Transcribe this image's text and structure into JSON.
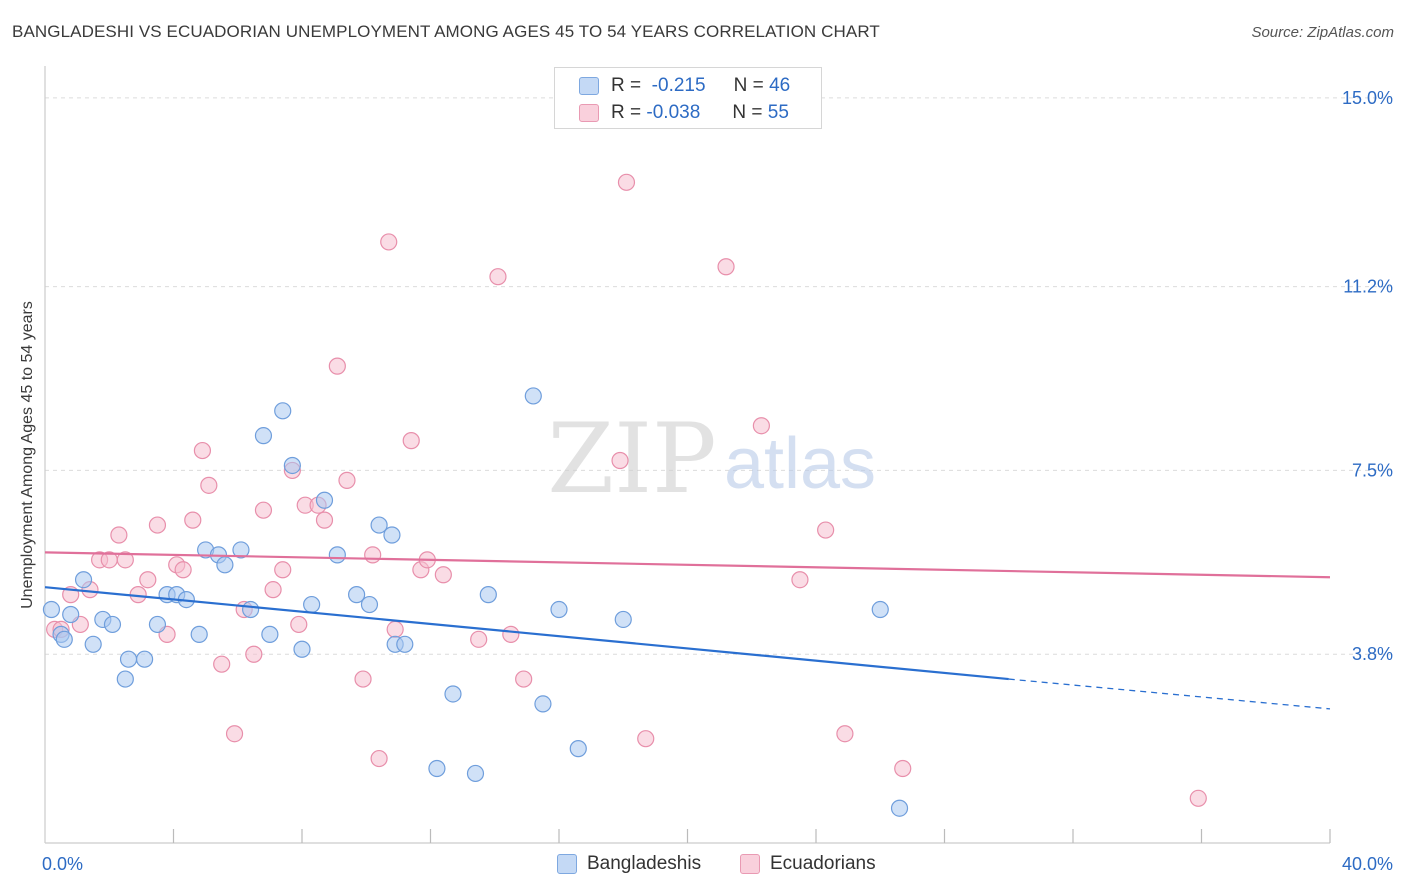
{
  "header": {
    "title": "BANGLADESHI VS ECUADORIAN UNEMPLOYMENT AMONG AGES 45 TO 54 YEARS CORRELATION CHART",
    "source": "Source: ZipAtlas.com"
  },
  "legend_top": {
    "rows": [
      {
        "r_label": "R =",
        "r_value": "-0.215",
        "n_label": "N =",
        "n_value": "46"
      },
      {
        "r_label": "R =",
        "r_value": "-0.038",
        "n_label": "N =",
        "n_value": "55"
      }
    ]
  },
  "legend_bottom": {
    "items": [
      "Bangladeshis",
      "Ecuadorians"
    ]
  },
  "watermark": {
    "zip": "ZIP",
    "atlas": "atlas"
  },
  "colors": {
    "blue_fill": "#aac8f0",
    "blue_stroke": "#6f9edc",
    "blue_line": "#2a6fd0",
    "pink_fill": "#f6bfd0",
    "pink_stroke": "#e88fab",
    "pink_line": "#e0709a",
    "tick_label": "#2d6bc4",
    "grid": "#dcdcdc"
  },
  "chart_data": {
    "type": "scatter",
    "title": "BANGLADESHI VS ECUADORIAN UNEMPLOYMENT AMONG AGES 45 TO 54 YEARS CORRELATION CHART",
    "xlabel": "",
    "ylabel": "Unemployment Among Ages 45 to 54 years",
    "xlim": [
      0,
      40
    ],
    "ylim": [
      0,
      15.4
    ],
    "x_tick_labels": [
      "0.0%",
      "40.0%"
    ],
    "y_ticks": [
      3.8,
      7.5,
      11.2,
      15.0
    ],
    "y_tick_labels": [
      "3.8%",
      "7.5%",
      "11.2%",
      "15.0%"
    ],
    "grid": "horizontal dashed",
    "legend_position": "bottom",
    "series": [
      {
        "name": "Bangladeshis",
        "color": "#aac8f0",
        "points": [
          [
            0.2,
            4.7
          ],
          [
            0.5,
            4.2
          ],
          [
            0.6,
            4.1
          ],
          [
            0.8,
            4.6
          ],
          [
            1.2,
            5.3
          ],
          [
            1.5,
            4.0
          ],
          [
            1.8,
            4.5
          ],
          [
            2.1,
            4.4
          ],
          [
            2.6,
            3.7
          ],
          [
            2.5,
            3.3
          ],
          [
            3.1,
            3.7
          ],
          [
            3.5,
            4.4
          ],
          [
            3.8,
            5.0
          ],
          [
            4.1,
            5.0
          ],
          [
            4.4,
            4.9
          ],
          [
            4.8,
            4.2
          ],
          [
            5.0,
            5.9
          ],
          [
            5.4,
            5.8
          ],
          [
            5.6,
            5.6
          ],
          [
            6.1,
            5.9
          ],
          [
            6.4,
            4.7
          ],
          [
            6.8,
            8.2
          ],
          [
            7.0,
            4.2
          ],
          [
            7.4,
            8.7
          ],
          [
            7.7,
            7.6
          ],
          [
            8.0,
            3.9
          ],
          [
            8.3,
            4.8
          ],
          [
            8.7,
            6.9
          ],
          [
            9.1,
            5.8
          ],
          [
            9.7,
            5.0
          ],
          [
            10.1,
            4.8
          ],
          [
            10.4,
            6.4
          ],
          [
            10.8,
            6.2
          ],
          [
            10.9,
            4.0
          ],
          [
            11.2,
            4.0
          ],
          [
            12.2,
            1.5
          ],
          [
            12.7,
            3.0
          ],
          [
            13.4,
            1.4
          ],
          [
            13.8,
            5.0
          ],
          [
            15.2,
            9.0
          ],
          [
            15.5,
            2.8
          ],
          [
            16.0,
            4.7
          ],
          [
            16.6,
            1.9
          ],
          [
            18.0,
            4.5
          ],
          [
            26.0,
            4.7
          ],
          [
            26.6,
            0.7
          ]
        ],
        "trend": {
          "x0": 0,
          "y0": 5.15,
          "x1": 30.0,
          "y1": 3.3,
          "dashed_to_x": 40.0,
          "dashed_to_y": 2.7
        }
      },
      {
        "name": "Ecuadorians",
        "color": "#f6bfd0",
        "points": [
          [
            0.3,
            4.3
          ],
          [
            0.5,
            4.3
          ],
          [
            0.8,
            5.0
          ],
          [
            1.1,
            4.4
          ],
          [
            1.4,
            5.1
          ],
          [
            1.7,
            5.7
          ],
          [
            2.0,
            5.7
          ],
          [
            2.3,
            6.2
          ],
          [
            2.5,
            5.7
          ],
          [
            2.9,
            5.0
          ],
          [
            3.2,
            5.3
          ],
          [
            3.5,
            6.4
          ],
          [
            3.8,
            4.2
          ],
          [
            4.1,
            5.6
          ],
          [
            4.3,
            5.5
          ],
          [
            4.6,
            6.5
          ],
          [
            4.9,
            7.9
          ],
          [
            5.1,
            7.2
          ],
          [
            5.5,
            3.6
          ],
          [
            5.9,
            2.2
          ],
          [
            6.2,
            4.7
          ],
          [
            6.5,
            3.8
          ],
          [
            6.8,
            6.7
          ],
          [
            7.1,
            5.1
          ],
          [
            7.4,
            5.5
          ],
          [
            7.7,
            7.5
          ],
          [
            7.9,
            4.4
          ],
          [
            8.1,
            6.8
          ],
          [
            8.5,
            6.8
          ],
          [
            8.7,
            6.5
          ],
          [
            9.1,
            9.6
          ],
          [
            9.4,
            7.3
          ],
          [
            9.9,
            3.3
          ],
          [
            10.2,
            5.8
          ],
          [
            10.4,
            1.7
          ],
          [
            10.7,
            12.1
          ],
          [
            10.9,
            4.3
          ],
          [
            11.4,
            8.1
          ],
          [
            11.7,
            5.5
          ],
          [
            11.9,
            5.7
          ],
          [
            12.4,
            5.4
          ],
          [
            13.5,
            4.1
          ],
          [
            14.1,
            11.4
          ],
          [
            14.5,
            4.2
          ],
          [
            14.9,
            3.3
          ],
          [
            17.9,
            7.7
          ],
          [
            18.1,
            13.3
          ],
          [
            18.7,
            2.1
          ],
          [
            21.2,
            11.6
          ],
          [
            22.3,
            8.4
          ],
          [
            23.5,
            5.3
          ],
          [
            24.3,
            6.3
          ],
          [
            24.9,
            2.2
          ],
          [
            26.7,
            1.5
          ],
          [
            35.9,
            0.9
          ]
        ],
        "trend": {
          "x0": 0,
          "y0": 5.85,
          "x1": 40.0,
          "y1": 5.35
        }
      }
    ]
  }
}
